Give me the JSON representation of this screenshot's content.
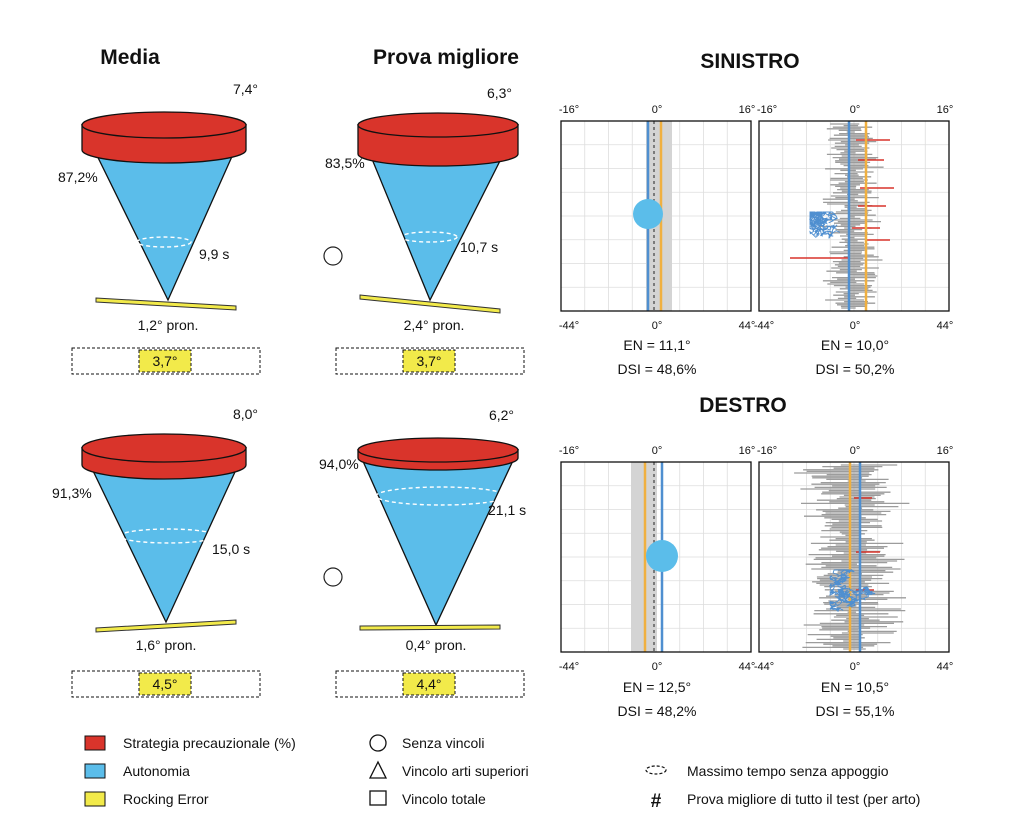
{
  "headers": {
    "media": "Media",
    "prova_migliore": "Prova migliore",
    "sinistro": "SINISTRO",
    "destro": "DESTRO"
  },
  "cones": [
    {
      "id": "media-sinistro",
      "angle": "7,4°",
      "percent": "87,2%",
      "time": "9,9 s",
      "rock": "1,2° pron.",
      "box": "3,7°",
      "circle": false
    },
    {
      "id": "best-sinistro",
      "angle": "6,3°",
      "percent": "83,5%",
      "time": "10,7 s",
      "rock": "2,4° pron.",
      "box": "3,7°",
      "circle": true
    },
    {
      "id": "media-destro",
      "angle": "8,0°",
      "percent": "91,3%",
      "time": "15,0 s",
      "rock": "1,6° pron.",
      "box": "4,5°",
      "circle": false
    },
    {
      "id": "best-destro",
      "angle": "6,2°",
      "percent": "94,0%",
      "time": "21,1 s",
      "rock": "0,4° pron.",
      "box": "4,4°",
      "circle": true
    }
  ],
  "plots": {
    "sinistro": {
      "left": {
        "top_ticks": [
          "-16°",
          "0°",
          "16°"
        ],
        "bottom_ticks": [
          "-44°",
          "0°",
          "44°"
        ],
        "en": "EN = 11,1°",
        "dsi": "DSI = 48,6%"
      },
      "right": {
        "top_ticks": [
          "-16°",
          "0°",
          "16°"
        ],
        "bottom_ticks": [
          "-44°",
          "0°",
          "44°"
        ],
        "en": "EN = 10,0°",
        "dsi": "DSI = 50,2%"
      }
    },
    "destro": {
      "left": {
        "top_ticks": [
          "-16°",
          "0°",
          "16°"
        ],
        "bottom_ticks": [
          "-44°",
          "0°",
          "44°"
        ],
        "en": "EN = 12,5°",
        "dsi": "DSI = 48,2%"
      },
      "right": {
        "top_ticks": [
          "-16°",
          "0°",
          "16°"
        ],
        "bottom_ticks": [
          "-44°",
          "0°",
          "44°"
        ],
        "en": "EN = 10,5°",
        "dsi": "DSI = 55,1%"
      }
    }
  },
  "legend": {
    "red": "Strategia precauzionale (%)",
    "blue": "Autonomia",
    "yellow": "Rocking Error",
    "circle": "Senza vincoli",
    "triangle": "Vincolo arti superiori",
    "square": "Vincolo totale",
    "dashed": "Massimo tempo senza appoggio",
    "hash_symbol": "#",
    "hash": "Prova migliore di tutto il test (per arto)"
  },
  "colors": {
    "red": "#d9342b",
    "blue": "#5bbdea",
    "yellow": "#f2ea4a",
    "line_blue": "#4f8fd0",
    "line_orange": "#f0b040",
    "gray": "#999999"
  },
  "chart_data": [
    {
      "type": "cone",
      "title": "Media",
      "side": "SINISTRO",
      "strategia_precauzionale_percent": 87.2,
      "angle_deg": 7.4,
      "max_time_s": 9.9,
      "rocking_deg": 1.2,
      "rocking_error_deg": 3.7
    },
    {
      "type": "cone",
      "title": "Prova migliore",
      "side": "SINISTRO",
      "strategia_precauzionale_percent": 83.5,
      "angle_deg": 6.3,
      "max_time_s": 10.7,
      "rocking_deg": 2.4,
      "rocking_error_deg": 3.7
    },
    {
      "type": "cone",
      "title": "Media",
      "side": "DESTRO",
      "strategia_precauzionale_percent": 91.3,
      "angle_deg": 8.0,
      "max_time_s": 15.0,
      "rocking_deg": 1.6,
      "rocking_error_deg": 4.5
    },
    {
      "type": "cone",
      "title": "Prova migliore",
      "side": "DESTRO",
      "strategia_precauzionale_percent": 94.0,
      "angle_deg": 6.2,
      "max_time_s": 21.1,
      "rocking_deg": 0.4,
      "rocking_error_deg": 4.4
    },
    {
      "type": "scatter",
      "side": "SINISTRO",
      "xlim": [
        -16,
        16
      ],
      "x_bottom_lim": [
        -44,
        44
      ],
      "EN_deg": 11.1,
      "DSI_percent": 48.6
    },
    {
      "type": "line",
      "side": "SINISTRO",
      "xlim": [
        -16,
        16
      ],
      "x_bottom_lim": [
        -44,
        44
      ],
      "EN_deg": 10.0,
      "DSI_percent": 50.2
    },
    {
      "type": "scatter",
      "side": "DESTRO",
      "xlim": [
        -16,
        16
      ],
      "x_bottom_lim": [
        -44,
        44
      ],
      "EN_deg": 12.5,
      "DSI_percent": 48.2
    },
    {
      "type": "line",
      "side": "DESTRO",
      "xlim": [
        -16,
        16
      ],
      "x_bottom_lim": [
        -44,
        44
      ],
      "EN_deg": 10.5,
      "DSI_percent": 55.1
    }
  ]
}
